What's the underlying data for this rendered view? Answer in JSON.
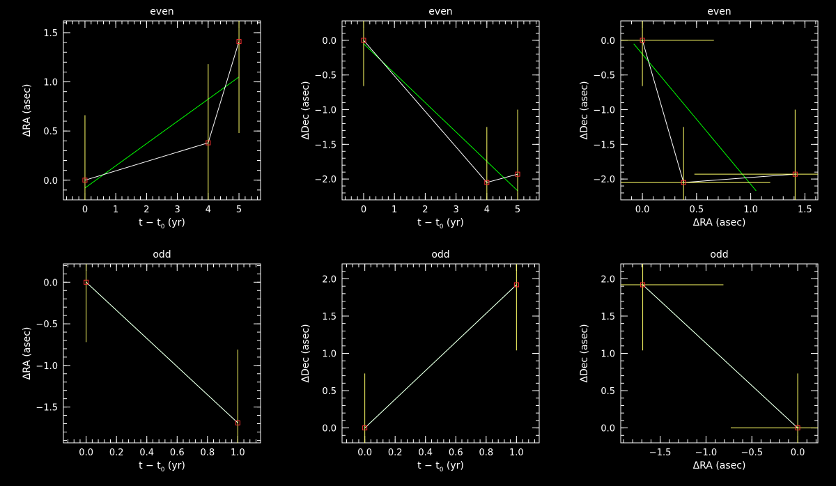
{
  "chart_data": [
    {
      "type": "line",
      "title": "even",
      "xlabel": "t − t",
      "xlabel_sub": "0",
      "xlabel_suffix": " (yr)",
      "ylabel": "ΔRA (asec)",
      "xlim": [
        -0.7,
        5.7
      ],
      "ylim": [
        -0.2,
        1.62
      ],
      "xticks": [
        0,
        1,
        2,
        3,
        4,
        5
      ],
      "xtick_labels": [
        "0",
        "1",
        "2",
        "3",
        "4",
        "5"
      ],
      "yticks": [
        0,
        0.5,
        1,
        1.5
      ],
      "ytick_labels": [
        "0.0",
        "0.5",
        "1.0",
        "1.5"
      ],
      "points": [
        {
          "x": 0,
          "y": 0.0,
          "xerr": 0,
          "yerr": 0.66
        },
        {
          "x": 4,
          "y": 0.38,
          "xerr": 0,
          "yerr": 0.8
        },
        {
          "x": 5,
          "y": 1.41,
          "xerr": 0,
          "yerr": 0.93
        }
      ],
      "fit": [
        [
          0,
          -0.08
        ],
        [
          5,
          1.05
        ]
      ]
    },
    {
      "type": "line",
      "title": "even",
      "xlabel": "t − t",
      "xlabel_sub": "0",
      "xlabel_suffix": " (yr)",
      "ylabel": "ΔDec (asec)",
      "xlim": [
        -0.7,
        5.7
      ],
      "ylim": [
        -2.3,
        0.28
      ],
      "xticks": [
        0,
        1,
        2,
        3,
        4,
        5
      ],
      "xtick_labels": [
        "0",
        "1",
        "2",
        "3",
        "4",
        "5"
      ],
      "yticks": [
        -2,
        -1.5,
        -1,
        -0.5,
        0
      ],
      "ytick_labels": [
        "−2.0",
        "−1.5",
        "−1.0",
        "−0.5",
        "0.0"
      ],
      "points": [
        {
          "x": 0,
          "y": 0.0,
          "xerr": 0,
          "yerr": 0.66
        },
        {
          "x": 4,
          "y": -2.05,
          "xerr": 0,
          "yerr": 0.8
        },
        {
          "x": 5,
          "y": -1.93,
          "xerr": 0,
          "yerr": 0.93
        }
      ],
      "fit": [
        [
          0,
          -0.05
        ],
        [
          5,
          -2.17
        ]
      ]
    },
    {
      "type": "scatter",
      "title": "even",
      "xlabel": "ΔRA (asec)",
      "ylabel": "ΔDec (asec)",
      "xlim": [
        -0.2,
        1.62
      ],
      "ylim": [
        -2.3,
        0.28
      ],
      "xticks": [
        0,
        0.5,
        1,
        1.5
      ],
      "xtick_labels": [
        "0.0",
        "0.5",
        "1.0",
        "1.5"
      ],
      "yticks": [
        -2,
        -1.5,
        -1,
        -0.5,
        0
      ],
      "ytick_labels": [
        "−2.0",
        "−1.5",
        "−1.0",
        "−0.5",
        "0.0"
      ],
      "points": [
        {
          "x": 0.0,
          "y": 0.0,
          "xerr": 0.66,
          "yerr": 0.66
        },
        {
          "x": 0.38,
          "y": -2.05,
          "xerr": 0.8,
          "yerr": 0.8
        },
        {
          "x": 1.41,
          "y": -1.93,
          "xerr": 0.93,
          "yerr": 0.93
        }
      ],
      "fit": [
        [
          -0.08,
          -0.05
        ],
        [
          1.05,
          -2.17
        ]
      ]
    },
    {
      "type": "line",
      "title": "odd",
      "xlabel": "t − t",
      "xlabel_sub": "0",
      "xlabel_suffix": " (yr)",
      "ylabel": "ΔRA (asec)",
      "xlim": [
        -0.15,
        1.15
      ],
      "ylim": [
        -1.93,
        0.22
      ],
      "xticks": [
        0,
        0.2,
        0.4,
        0.6,
        0.8,
        1.0
      ],
      "xtick_labels": [
        "0.0",
        "0.2",
        "0.4",
        "0.6",
        "0.8",
        "1.0"
      ],
      "yticks": [
        -1.5,
        -1,
        -0.5,
        0
      ],
      "ytick_labels": [
        "−1.5",
        "−1.0",
        "−0.5",
        "0.0"
      ],
      "points": [
        {
          "x": 0,
          "y": 0.0,
          "xerr": 0,
          "yerr": 0.72
        },
        {
          "x": 1,
          "y": -1.69,
          "xerr": 0,
          "yerr": 0.88
        }
      ],
      "fit": [
        [
          0,
          0.0
        ],
        [
          1,
          -1.69
        ]
      ]
    },
    {
      "type": "line",
      "title": "odd",
      "xlabel": "t − t",
      "xlabel_sub": "0",
      "xlabel_suffix": " (yr)",
      "ylabel": "ΔDec (asec)",
      "xlim": [
        -0.15,
        1.15
      ],
      "ylim": [
        -0.2,
        2.2
      ],
      "xticks": [
        0,
        0.2,
        0.4,
        0.6,
        0.8,
        1.0
      ],
      "xtick_labels": [
        "0.0",
        "0.2",
        "0.4",
        "0.6",
        "0.8",
        "1.0"
      ],
      "yticks": [
        0,
        0.5,
        1,
        1.5,
        2
      ],
      "ytick_labels": [
        "0.0",
        "0.5",
        "1.0",
        "1.5",
        "2.0"
      ],
      "points": [
        {
          "x": 0,
          "y": 0.0,
          "xerr": 0,
          "yerr": 0.73
        },
        {
          "x": 1,
          "y": 1.92,
          "xerr": 0,
          "yerr": 0.88
        }
      ],
      "fit": [
        [
          0,
          0.0
        ],
        [
          1,
          1.92
        ]
      ]
    },
    {
      "type": "scatter",
      "title": "odd",
      "xlabel": "ΔRA (asec)",
      "ylabel": "ΔDec (asec)",
      "xlim": [
        -1.93,
        0.22
      ],
      "ylim": [
        -0.2,
        2.2
      ],
      "xticks": [
        -1.5,
        -1,
        -0.5,
        0
      ],
      "xtick_labels": [
        "−1.5",
        "−1.0",
        "−0.5",
        "0.0"
      ],
      "yticks": [
        0,
        0.5,
        1,
        1.5,
        2
      ],
      "ytick_labels": [
        "0.0",
        "0.5",
        "1.0",
        "1.5",
        "2.0"
      ],
      "points": [
        {
          "x": -1.69,
          "y": 1.92,
          "xerr": 0.88,
          "yerr": 0.88
        },
        {
          "x": 0.0,
          "y": 0.0,
          "xerr": 0.73,
          "yerr": 0.73
        }
      ],
      "fit": [
        [
          -1.69,
          1.92
        ],
        [
          0.0,
          0.0
        ]
      ]
    }
  ],
  "colors": {
    "background": "#000000",
    "axes": "#ffffff",
    "data_line": "#ffffff",
    "fit_line": "#00ff00",
    "error_bar": "#ffff66",
    "marker": "#ff3333"
  }
}
